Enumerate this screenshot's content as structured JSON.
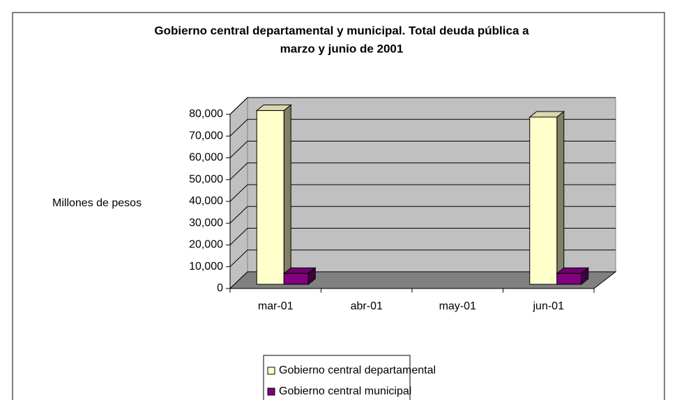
{
  "chart_data": {
    "type": "bar3d",
    "title": [
      "Gobierno central departamental y municipal.  Total deuda pública a",
      "marzo y junio de 2001"
    ],
    "y_label": "Millones de pesos",
    "categories": [
      "mar-01",
      "abr-01",
      "may-01",
      "jun-01"
    ],
    "series": [
      {
        "name": "Gobierno central departamental",
        "color": "#ffffcc",
        "values": [
          79800,
          null,
          null,
          76800
        ]
      },
      {
        "name": "Gobierno central municipal",
        "color": "#800080",
        "values": [
          5000,
          null,
          null,
          5000
        ]
      }
    ],
    "ylim": [
      0,
      80000
    ],
    "yticks": [
      0,
      {
        "value": 10000,
        "label": "10,000"
      },
      {
        "value": 20000,
        "label": "20,000"
      },
      {
        "value": 30000,
        "label": "30,000"
      },
      {
        "value": 40000,
        "label": "40,000"
      },
      {
        "value": 50000,
        "label": "50,000"
      },
      {
        "value": 60000,
        "label": "60,000"
      },
      {
        "value": 70000,
        "label": "70,000"
      },
      {
        "value": 80000,
        "label": "80,000"
      }
    ],
    "grid": true
  }
}
